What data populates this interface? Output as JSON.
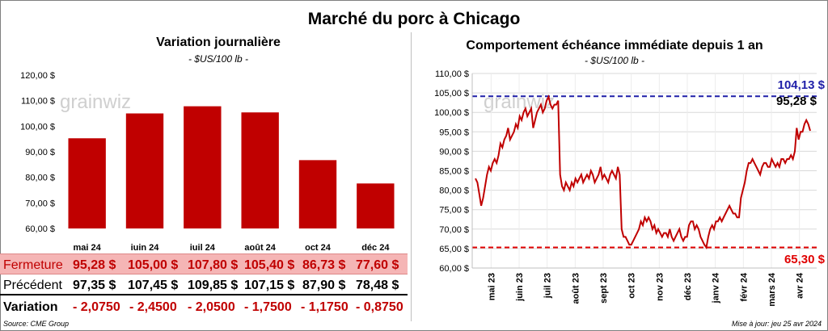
{
  "title": "Marché du porc à Chicago",
  "left": {
    "title": "Variation  journalière",
    "subtitle": "- $US/100 lb -",
    "watermark": "grainwiz"
  },
  "right": {
    "title": "Comportement  échéance immédiate depuis 1 an",
    "subtitle": "- $US/100 lb -",
    "watermark": "grainwiz",
    "high_label": "104,13 $",
    "last_label": "95,28 $",
    "low_label": "65,30 $"
  },
  "table": {
    "row_labels": [
      "Fermeture",
      "Précédent",
      "Variation"
    ],
    "fermeture": [
      "95,28  $",
      "105,00  $",
      "107,80  $",
      "105,40  $",
      "86,73  $",
      "77,60  $"
    ],
    "precedent": [
      "97,35  $",
      "107,45  $",
      "109,85  $",
      "107,15  $",
      "87,90  $",
      "78,48  $"
    ],
    "variation": [
      "- 2,0750",
      "- 2,4500",
      "- 2,0500",
      "- 1,7500",
      "- 1,1750",
      "- 0,8750"
    ]
  },
  "footer": {
    "source": "Source: CME Group",
    "update": "Mise à jour: jeu 25 avr 2024"
  },
  "colors": {
    "bar": "#c00000",
    "high_line": "#1f1fa8",
    "low_line": "#e00000",
    "line": "#c00000"
  },
  "chart_data": [
    {
      "type": "bar",
      "title": "Variation  journalière",
      "subtitle": "- $US/100 lb -",
      "categories": [
        "mai 24",
        "juin 24",
        "juil 24",
        "août 24",
        "oct 24",
        "déc 24"
      ],
      "values": [
        95.28,
        105.0,
        107.8,
        105.4,
        86.73,
        77.6
      ],
      "ylim": [
        60,
        120
      ],
      "yticks": [
        "60,00 $",
        "70,00 $",
        "80,00 $",
        "90,00 $",
        "100,00 $",
        "110,00 $",
        "120,00 $"
      ],
      "grid": false
    },
    {
      "type": "line",
      "title": "Comportement  échéance immédiate depuis 1 an",
      "subtitle": "- $US/100 lb -",
      "ylim": [
        60,
        110
      ],
      "yticks": [
        "60,00 $",
        "65,00 $",
        "70,00 $",
        "75,00 $",
        "80,00 $",
        "85,00 $",
        "90,00 $",
        "95,00 $",
        "100,00 $",
        "105,00 $",
        "110,00 $"
      ],
      "xticks": [
        "mai 23",
        "juin 23",
        "juil 23",
        "août 23",
        "sept 23",
        "oct 23",
        "nov 23",
        "déc 23",
        "janv 24",
        "févr 24",
        "mars 24",
        "avr 24"
      ],
      "grid": true,
      "reference_lines": [
        {
          "label": "104,13 $",
          "value": 104.13,
          "style": "dashed",
          "color": "#1f1fa8"
        },
        {
          "label": "65,30 $",
          "value": 65.3,
          "style": "dashed",
          "color": "#e00000"
        }
      ],
      "last_value_label": "95,28 $",
      "series": [
        {
          "values": [
            83,
            82,
            79,
            76,
            78,
            81,
            84,
            86,
            85,
            87,
            88,
            87,
            89,
            92,
            91,
            93,
            94,
            96,
            93,
            94,
            95,
            97,
            96,
            99,
            98,
            100,
            101,
            99,
            100,
            101,
            96,
            98,
            100,
            101,
            102,
            100,
            101,
            103,
            104,
            102,
            101,
            102,
            102,
            103,
            84,
            81,
            80,
            82,
            81,
            80,
            82,
            81,
            83,
            82,
            83,
            84,
            82,
            83,
            84,
            83,
            85,
            84,
            82,
            83,
            84,
            86,
            83,
            84,
            83,
            82,
            84,
            85,
            84,
            83,
            86,
            84,
            70,
            68,
            68,
            67,
            66,
            66,
            67,
            68,
            69,
            70,
            72,
            71,
            73,
            72,
            73,
            72,
            70,
            71,
            69,
            70,
            69,
            68,
            69,
            69,
            68,
            70,
            68,
            67,
            68,
            69,
            70,
            68,
            67,
            68,
            68,
            71,
            72,
            72,
            70,
            71,
            70,
            68,
            67,
            66,
            65.3,
            68,
            70,
            71,
            70,
            72,
            72,
            73,
            72,
            73,
            74,
            75,
            76,
            75,
            74,
            74,
            73,
            73,
            78,
            80,
            82,
            85,
            87,
            87,
            88,
            87,
            86,
            85,
            84,
            86,
            87,
            87,
            86,
            86,
            88,
            87,
            86,
            87,
            86,
            88,
            88,
            87,
            88,
            88,
            89,
            88,
            90,
            96,
            93,
            95,
            95,
            97,
            98,
            97,
            95.28
          ]
        }
      ]
    }
  ]
}
